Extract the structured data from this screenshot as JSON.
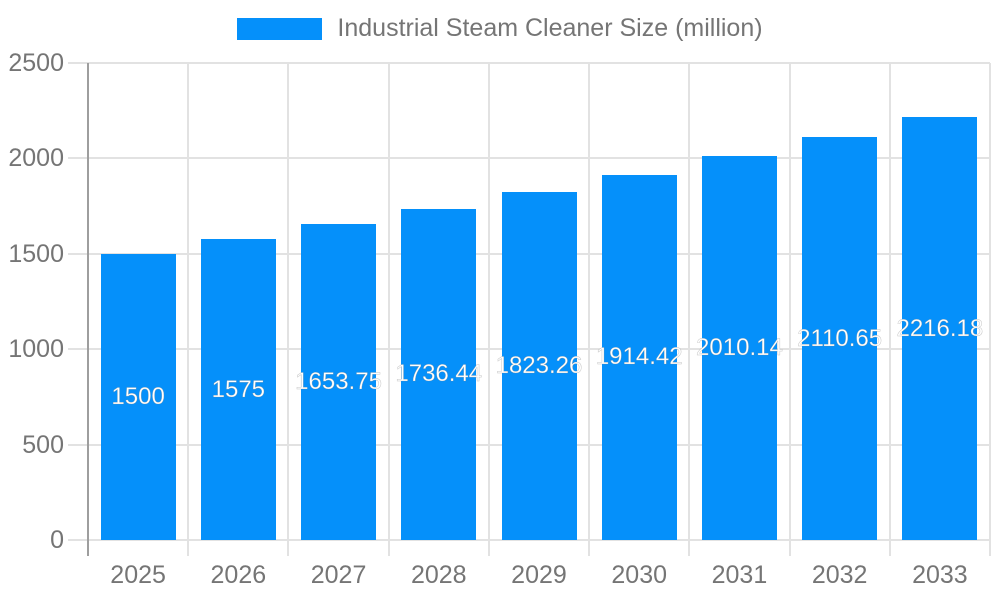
{
  "chart_data": {
    "type": "bar",
    "title": "",
    "legend": "Industrial Steam Cleaner Size (million)",
    "legend_position": "top",
    "series_name": "Industrial Steam Cleaner Size (million)",
    "categories": [
      "2025",
      "2026",
      "2027",
      "2028",
      "2029",
      "2030",
      "2031",
      "2032",
      "2033"
    ],
    "values": [
      1500,
      1575,
      1653.75,
      1736.44,
      1823.26,
      1914.42,
      2010.14,
      2110.65,
      2216.18
    ],
    "value_labels": [
      "1500",
      "1575",
      "1653.75",
      "1736.44",
      "1823.26",
      "1914.42",
      "2010.14",
      "2110.65",
      "2216.18"
    ],
    "xlabel": "",
    "ylabel": "",
    "ylim": [
      0,
      2500
    ],
    "yticks": [
      0,
      500,
      1000,
      1500,
      2000,
      2500
    ],
    "ytick_labels": [
      "0",
      "500",
      "1000",
      "1500",
      "2000",
      "2500"
    ],
    "grid": true,
    "bar_value_position": "middle",
    "colors": {
      "bar": "#0590FA",
      "axis_text": "#757575",
      "grid_line": "#E2E2E2",
      "axis_line": "#9E9E9E",
      "bar_label": "#FFFFFF",
      "background": "#FFFFFF"
    }
  }
}
